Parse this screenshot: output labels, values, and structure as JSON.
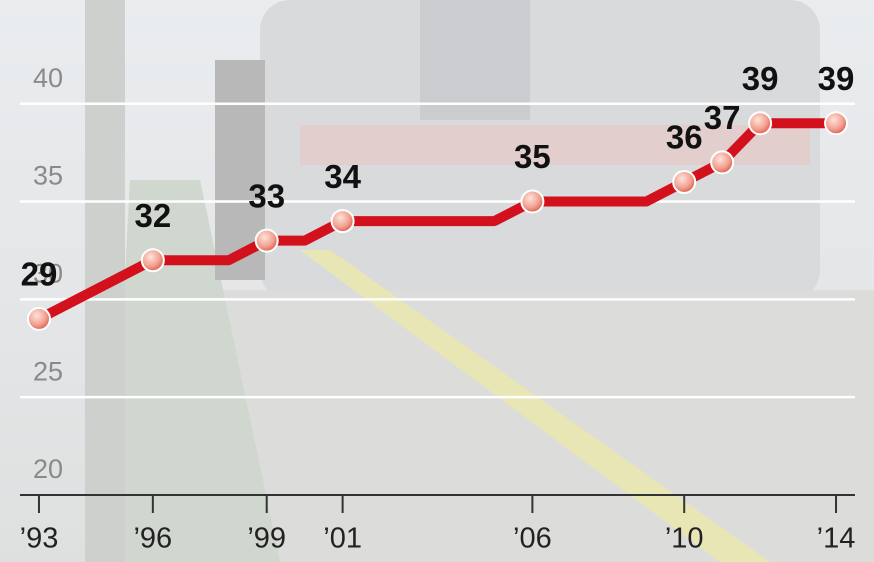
{
  "chart_data": {
    "type": "line",
    "x": [
      1993,
      1996,
      1998,
      1999,
      2000,
      2001,
      2005,
      2006,
      2009,
      2010,
      2011,
      2012,
      2014
    ],
    "values": [
      29,
      32,
      32,
      33,
      33,
      34,
      34,
      35,
      35,
      36,
      37,
      39,
      39
    ],
    "value_labels": [
      "29",
      "32",
      null,
      "33",
      null,
      "34",
      null,
      "35",
      null,
      "36",
      "37",
      "39",
      "39"
    ],
    "color": "#d3111d",
    "xlim": [
      1992.5,
      2014.5
    ],
    "xticks": [
      {
        "value": 1993,
        "label": "’93"
      },
      {
        "value": 1996,
        "label": "’96"
      },
      {
        "value": 1999,
        "label": "’99"
      },
      {
        "value": 2001,
        "label": "’01"
      },
      {
        "value": 2006,
        "label": "’06"
      },
      {
        "value": 2010,
        "label": "’10"
      },
      {
        "value": 2014,
        "label": "’14"
      }
    ],
    "ylim": [
      20,
      45.3
    ],
    "yticks": [
      20,
      25,
      30,
      35,
      40
    ],
    "grid": true
  }
}
